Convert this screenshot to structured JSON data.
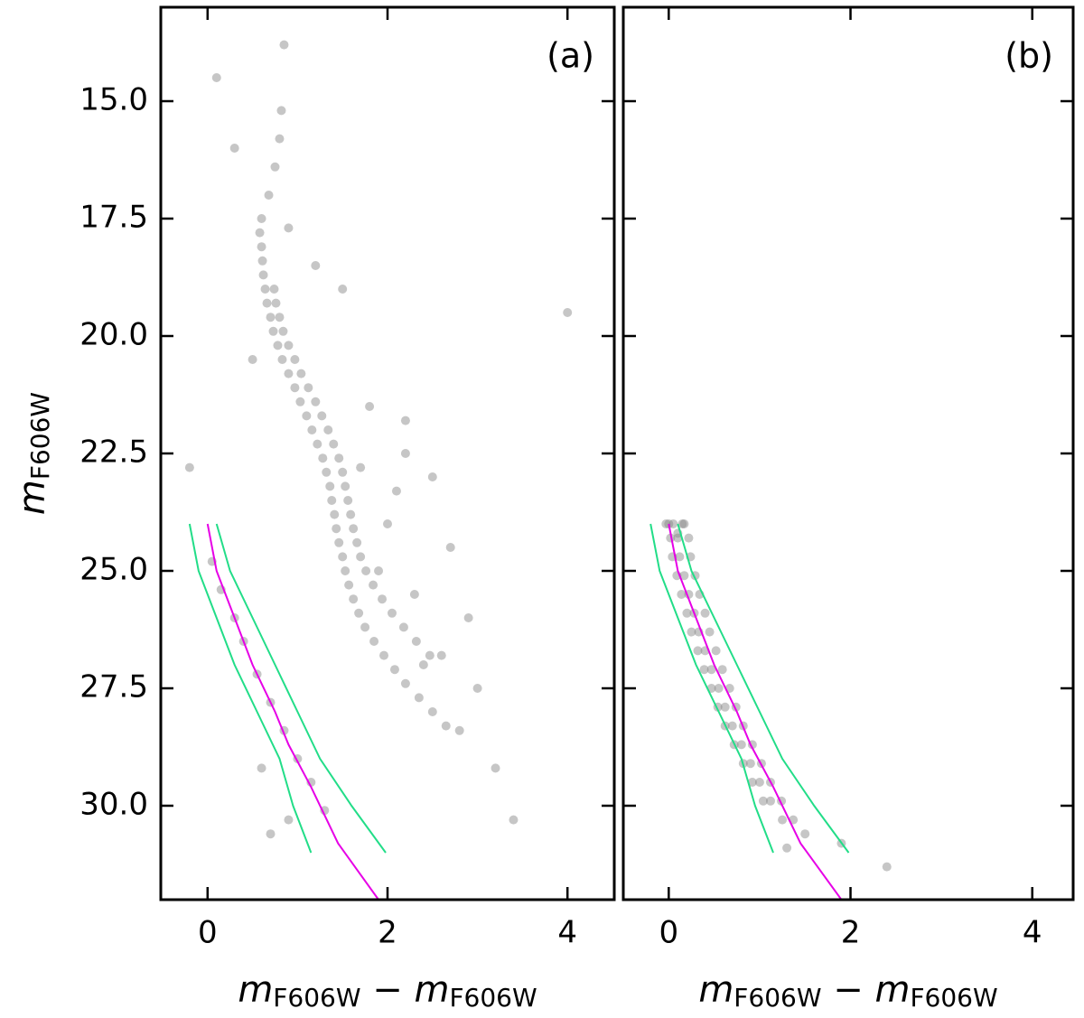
{
  "chart_data": [
    {
      "type": "scatter",
      "panel_label": "(a)",
      "xlabel": [
        {
          "text": "m",
          "style": "italic"
        },
        {
          "text": "F606W",
          "style": "sub"
        },
        {
          "text": " − ",
          "style": "normal"
        },
        {
          "text": "m",
          "style": "italic"
        },
        {
          "text": "F606W",
          "style": "sub"
        }
      ],
      "ylabel": [
        {
          "text": "m",
          "style": "italic"
        },
        {
          "text": "F606W",
          "style": "sub"
        }
      ],
      "xlim": [
        -0.52,
        4.52
      ],
      "ylim": [
        13,
        32
      ],
      "invert_y": true,
      "xticks": [
        0,
        2,
        4
      ],
      "yticks": [
        {
          "value": 15,
          "label": "15.0"
        },
        {
          "value": 17.5,
          "label": "17.5"
        },
        {
          "value": 20,
          "label": "20.0"
        },
        {
          "value": 22.5,
          "label": "22.5"
        },
        {
          "value": 25,
          "label": "25.0"
        },
        {
          "value": 27.5,
          "label": "27.5"
        },
        {
          "value": 30,
          "label": "30.0"
        }
      ],
      "show_ytick_labels": true,
      "series": [
        {
          "style": "scatter",
          "color": "#808080",
          "x": [
            0.82,
            0.8,
            0.75,
            0.68,
            0.6,
            0.58,
            0.6,
            0.61,
            0.62,
            0.64,
            0.66,
            0.7,
            0.73,
            0.78,
            0.83,
            0.9,
            0.97,
            1.03,
            1.1,
            1.16,
            1.22,
            1.28,
            1.32,
            1.36,
            1.38,
            1.41,
            1.43,
            1.46,
            1.5,
            1.53,
            1.57,
            1.62,
            1.68,
            1.75,
            1.85,
            1.96,
            2.08,
            2.2,
            2.35,
            2.5,
            2.65,
            0.74,
            0.76,
            0.8,
            0.84,
            0.9,
            0.97,
            1.04,
            1.12,
            1.2,
            1.27,
            1.34,
            1.4,
            1.46,
            1.5,
            1.53,
            1.56,
            1.59,
            1.62,
            1.66,
            1.7,
            1.76,
            1.84,
            1.94,
            2.05,
            2.18,
            2.32,
            2.47,
            1.8,
            2.2,
            2.5,
            2.0,
            2.7,
            2.3,
            2.9,
            2.6,
            2.1,
            1.9,
            3.0,
            2.8,
            3.2,
            3.4,
            1.5,
            1.2,
            0.3,
            0.1,
            0.85,
            -0.2,
            4.0,
            2.4,
            2.2,
            1.7,
            0.9,
            0.5,
            0.05,
            0.15,
            0.3,
            0.4,
            0.55,
            0.7,
            0.85,
            1.0,
            1.15,
            0.6,
            0.9,
            0.7,
            1.3
          ],
          "values": [
            15.2,
            15.8,
            16.4,
            17.0,
            17.5,
            17.8,
            18.1,
            18.4,
            18.7,
            19.0,
            19.3,
            19.6,
            19.9,
            20.2,
            20.5,
            20.8,
            21.1,
            21.4,
            21.7,
            22.0,
            22.3,
            22.6,
            22.9,
            23.2,
            23.5,
            23.8,
            24.1,
            24.4,
            24.7,
            25.0,
            25.3,
            25.6,
            25.9,
            26.2,
            26.5,
            26.8,
            27.1,
            27.4,
            27.7,
            28.0,
            28.3,
            19.0,
            19.3,
            19.6,
            19.9,
            20.2,
            20.5,
            20.8,
            21.1,
            21.4,
            21.7,
            22.0,
            22.3,
            22.6,
            22.9,
            23.2,
            23.5,
            23.8,
            24.1,
            24.4,
            24.7,
            25.0,
            25.3,
            25.6,
            25.9,
            26.2,
            26.5,
            26.8,
            21.5,
            22.5,
            23.0,
            24.0,
            24.5,
            25.5,
            26.0,
            26.8,
            23.3,
            25.0,
            27.5,
            28.4,
            29.2,
            30.3,
            19.0,
            18.5,
            16.0,
            14.5,
            13.8,
            22.8,
            19.5,
            27.0,
            21.8,
            22.8,
            17.7,
            20.5,
            24.8,
            25.4,
            26.0,
            26.5,
            27.2,
            27.8,
            28.4,
            29.0,
            29.5,
            29.2,
            30.3,
            30.6,
            30.1
          ]
        },
        {
          "style": "line",
          "color": "#e600e6",
          "x": [
            0,
            0.1,
            0.3,
            0.5,
            0.75,
            0.9,
            1.15,
            1.45,
            1.9
          ],
          "values": [
            24,
            25,
            26,
            27,
            28,
            28.7,
            29.6,
            30.8,
            32
          ]
        },
        {
          "style": "line",
          "color": "#22dd88",
          "x": [
            -0.2,
            -0.1,
            0.1,
            0.3,
            0.55,
            0.8,
            0.95,
            1.15
          ],
          "values": [
            24,
            25,
            26,
            27,
            28,
            29,
            30,
            31
          ]
        },
        {
          "style": "line",
          "color": "#22dd88",
          "x": [
            0.1,
            0.25,
            0.5,
            0.75,
            1.0,
            1.25,
            1.6,
            1.98
          ],
          "values": [
            24,
            25,
            26,
            27,
            28,
            29,
            30,
            31
          ]
        }
      ]
    },
    {
      "type": "scatter",
      "panel_label": "(b)",
      "xlabel": [
        {
          "text": "m",
          "style": "italic"
        },
        {
          "text": "F606W",
          "style": "sub"
        },
        {
          "text": " − ",
          "style": "normal"
        },
        {
          "text": "m",
          "style": "italic"
        },
        {
          "text": "F606W",
          "style": "sub"
        }
      ],
      "xlim": [
        -0.5,
        4.45
      ],
      "ylim": [
        13,
        32
      ],
      "invert_y": true,
      "xticks": [
        0,
        2,
        4
      ],
      "yticks": [
        15,
        17.5,
        20,
        22.5,
        25,
        27.5,
        30
      ],
      "show_ytick_labels": false,
      "series": [
        {
          "style": "scatter",
          "color": "#808080",
          "x": [
            0.05,
            0.1,
            0.12,
            0.17,
            0.22,
            0.28,
            0.33,
            0.4,
            0.47,
            0.55,
            0.62,
            0.7,
            0.8,
            0.9,
            1.0,
            1.12,
            1.25,
            0.17,
            0.22,
            0.24,
            0.29,
            0.34,
            0.4,
            0.45,
            0.52,
            0.59,
            0.67,
            0.74,
            0.82,
            0.92,
            1.02,
            1.12,
            1.24,
            1.37,
            -0.03,
            0.02,
            0.04,
            0.09,
            0.14,
            0.2,
            0.25,
            0.32,
            0.39,
            0.47,
            0.54,
            0.62,
            0.72,
            0.82,
            0.92,
            1.04,
            2.4,
            1.9,
            0.0,
            0.15,
            0.1,
            1.5,
            1.3
          ],
          "values": [
            24.0,
            24.3,
            24.7,
            25.1,
            25.5,
            25.9,
            26.3,
            26.7,
            27.1,
            27.5,
            27.9,
            28.3,
            28.7,
            29.1,
            29.5,
            29.9,
            30.3,
            24.0,
            24.3,
            24.7,
            25.1,
            25.5,
            25.9,
            26.3,
            26.7,
            27.1,
            27.5,
            27.9,
            28.3,
            28.7,
            29.1,
            29.5,
            29.9,
            30.3,
            24.0,
            24.3,
            24.7,
            25.1,
            25.5,
            25.9,
            26.3,
            26.7,
            27.1,
            27.5,
            27.9,
            28.3,
            28.7,
            29.1,
            29.5,
            29.9,
            31.3,
            30.8,
            24.0,
            24.0,
            24.2,
            30.6,
            30.9
          ]
        },
        {
          "style": "line",
          "color": "#e600e6",
          "x": [
            0,
            0.1,
            0.3,
            0.5,
            0.75,
            0.9,
            1.15,
            1.45,
            1.9
          ],
          "values": [
            24,
            25,
            26,
            27,
            28,
            28.7,
            29.6,
            30.8,
            32
          ]
        },
        {
          "style": "line",
          "color": "#22dd88",
          "x": [
            -0.2,
            -0.1,
            0.1,
            0.3,
            0.55,
            0.8,
            0.95,
            1.15
          ],
          "values": [
            24,
            25,
            26,
            27,
            28,
            29,
            30,
            31
          ]
        },
        {
          "style": "line",
          "color": "#22dd88",
          "x": [
            0.1,
            0.25,
            0.5,
            0.75,
            1.0,
            1.25,
            1.6,
            1.98
          ],
          "values": [
            24,
            25,
            26,
            27,
            28,
            29,
            30,
            31
          ]
        }
      ]
    }
  ]
}
